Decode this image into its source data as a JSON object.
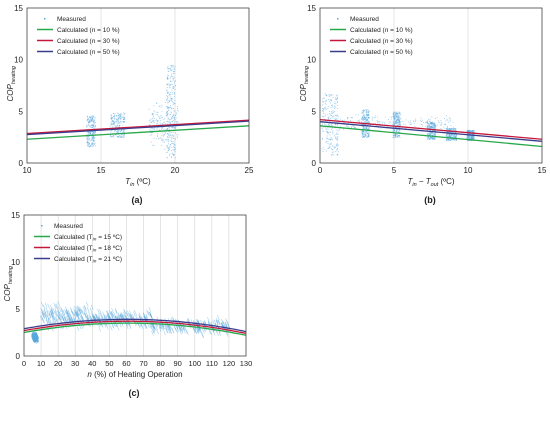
{
  "colors": {
    "measured": "#5aa9dd",
    "calc1": "#27a84a",
    "calc2": "#c4173a",
    "calc3": "#3a3d8c",
    "grid": "#d9d9d9"
  },
  "chart_data": [
    {
      "panel_label": "(a)",
      "type": "scatter",
      "ylabel_main": "COP",
      "ylabel_sub": "heating",
      "xlabel_main": "T",
      "xlabel_sub": "in",
      "xlabel_unit": " (ºC)",
      "xlim": [
        10,
        25
      ],
      "ylim": [
        0,
        15
      ],
      "xticks": [
        "10",
        "15",
        "20",
        "25"
      ],
      "yticks": [
        "0",
        "5",
        "10",
        "15"
      ],
      "grid": "vertical",
      "legend": [
        {
          "label": "Measured",
          "kind": "marker"
        },
        {
          "label": "Calculated (n = 10 %)",
          "kind": "line",
          "color": "calc1"
        },
        {
          "label": "Calculated (n = 30 %)",
          "kind": "line",
          "color": "calc2"
        },
        {
          "label": "Calculated (n = 50 %)",
          "kind": "line",
          "color": "calc3"
        }
      ],
      "lines": [
        {
          "color": "calc1",
          "x": [
            10,
            25
          ],
          "y": [
            2.3,
            3.6
          ]
        },
        {
          "color": "calc2",
          "x": [
            10,
            25
          ],
          "y": [
            2.85,
            4.15
          ]
        },
        {
          "color": "calc3",
          "x": [
            10,
            25
          ],
          "y": [
            2.75,
            4.05
          ]
        }
      ],
      "measured_clusters": [
        {
          "x": [
            14.0,
            14.6
          ],
          "y": [
            1.6,
            4.6
          ]
        },
        {
          "x": [
            15.6,
            16.6
          ],
          "y": [
            2.5,
            4.9
          ]
        },
        {
          "x": [
            18.2,
            20.2
          ],
          "y": [
            1.0,
            6.5
          ]
        },
        {
          "x": [
            19.4,
            20.0
          ],
          "y": [
            0.5,
            9.5
          ]
        }
      ]
    },
    {
      "panel_label": "(b)",
      "type": "scatter",
      "ylabel_main": "COP",
      "ylabel_sub": "heating",
      "xlabel_main": "T",
      "xlabel_sub": "in",
      "xlabel_mid": " − T",
      "xlabel_sub2": "out",
      "xlabel_unit": " (ºC)",
      "xlim": [
        0,
        15
      ],
      "ylim": [
        0,
        15
      ],
      "xticks": [
        "0",
        "5",
        "10",
        "15"
      ],
      "yticks": [
        "0",
        "5",
        "10",
        "15"
      ],
      "grid": "vertical",
      "legend": [
        {
          "label": "Measured",
          "kind": "marker"
        },
        {
          "label": "Calculated (n = 10 %)",
          "kind": "line",
          "color": "calc1"
        },
        {
          "label": "Calculated (n = 30 %)",
          "kind": "line",
          "color": "calc2"
        },
        {
          "label": "Calculated (n = 50 %)",
          "kind": "line",
          "color": "calc3"
        }
      ],
      "lines": [
        {
          "color": "calc1",
          "x": [
            0,
            15
          ],
          "y": [
            3.6,
            1.6
          ]
        },
        {
          "color": "calc2",
          "x": [
            0,
            15
          ],
          "y": [
            4.2,
            2.3
          ]
        },
        {
          "color": "calc3",
          "x": [
            0,
            15
          ],
          "y": [
            4.0,
            2.1
          ]
        }
      ],
      "measured_clusters": [
        {
          "x": [
            0.1,
            1.2
          ],
          "y": [
            0.8,
            6.8
          ]
        },
        {
          "x": [
            0.5,
            9.0
          ],
          "y": [
            2.8,
            5.0
          ]
        },
        {
          "x": [
            2.8,
            3.3
          ],
          "y": [
            2.5,
            5.2
          ]
        },
        {
          "x": [
            4.9,
            5.4
          ],
          "y": [
            2.5,
            5.0
          ]
        },
        {
          "x": [
            7.2,
            7.8
          ],
          "y": [
            2.3,
            4.0
          ]
        },
        {
          "x": [
            8.5,
            9.2
          ],
          "y": [
            2.2,
            3.4
          ]
        },
        {
          "x": [
            9.9,
            10.4
          ],
          "y": [
            2.2,
            3.2
          ]
        }
      ]
    },
    {
      "panel_label": "(c)",
      "type": "scatter",
      "ylabel_main": "COP",
      "ylabel_sub": "heating",
      "xlabel_main": "n (%) of Heating Operation",
      "xlim": [
        0,
        130
      ],
      "ylim": [
        0,
        15
      ],
      "xticks": [
        "0",
        "10",
        "20",
        "30",
        "40",
        "50",
        "60",
        "70",
        "80",
        "90",
        "100",
        "110",
        "120",
        "130"
      ],
      "yticks": [
        "0",
        "5",
        "10",
        "15"
      ],
      "grid": "vertical",
      "legend": [
        {
          "label": "Measured",
          "kind": "marker"
        },
        {
          "label": "Calculated (T",
          "sub": "in",
          "tail": " = 15 ºC)",
          "kind": "line",
          "color": "calc1"
        },
        {
          "label": "Calculated (T",
          "sub": "in",
          "tail": " = 18 ºC)",
          "kind": "line",
          "color": "calc2"
        },
        {
          "label": "Calculated (T",
          "sub": "in",
          "tail": " = 21 ºC)",
          "kind": "line",
          "color": "calc3"
        }
      ],
      "curves": [
        {
          "color": "calc1",
          "y0": 2.5,
          "ypeak": 3.5,
          "y130": 2.2
        },
        {
          "color": "calc2",
          "y0": 2.7,
          "ypeak": 3.7,
          "y130": 2.4
        },
        {
          "color": "calc3",
          "y0": 2.9,
          "ypeak": 3.9,
          "y130": 2.6
        }
      ],
      "measured_clusters": [
        {
          "x": [
            5,
            8
          ],
          "y": [
            1.5,
            2.5
          ]
        },
        {
          "x": [
            10,
            40
          ],
          "y": [
            2.5,
            5.8
          ]
        },
        {
          "x": [
            40,
            75
          ],
          "y": [
            2.6,
            5.2
          ]
        },
        {
          "x": [
            75,
            120
          ],
          "y": [
            2.0,
            4.3
          ]
        }
      ]
    }
  ]
}
